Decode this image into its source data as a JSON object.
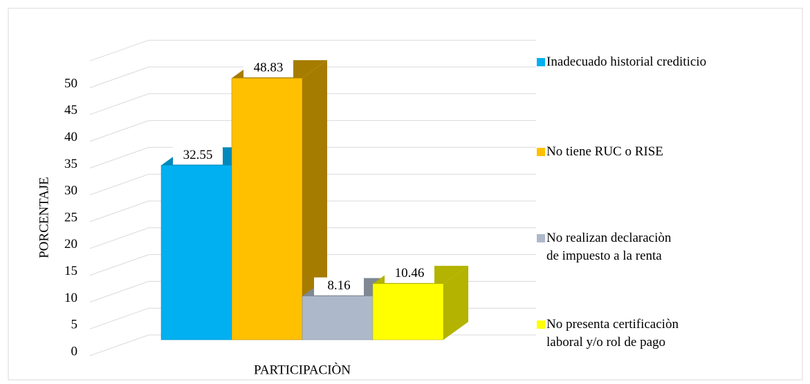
{
  "chart_data": {
    "type": "bar3d",
    "y_label": "PORCENTAJE",
    "categories": [
      "PARTICIPACIÒN"
    ],
    "series": [
      {
        "name": "Inadecuado historial crediticio",
        "color": "#00b0f0",
        "side": "#0089bb",
        "values": [
          32.55
        ]
      },
      {
        "name": "No tiene RUC o RISE",
        "color": "#ffc000",
        "side": "#a67c00",
        "values": [
          48.83
        ]
      },
      {
        "name": "No realizan declaraciòn de impuesto a la renta",
        "color": "#adb9ca",
        "side": "#7f8893",
        "values": [
          8.16
        ]
      },
      {
        "name": "No presenta certificaciòn laboral y/o rol de pago",
        "color": "#ffff00",
        "side": "#b3b300",
        "values": [
          10.46
        ]
      }
    ],
    "ylim": [
      0,
      55
    ],
    "yticks": [
      0,
      5,
      10,
      15,
      20,
      25,
      30,
      35,
      40,
      45,
      50
    ],
    "grid": true
  }
}
